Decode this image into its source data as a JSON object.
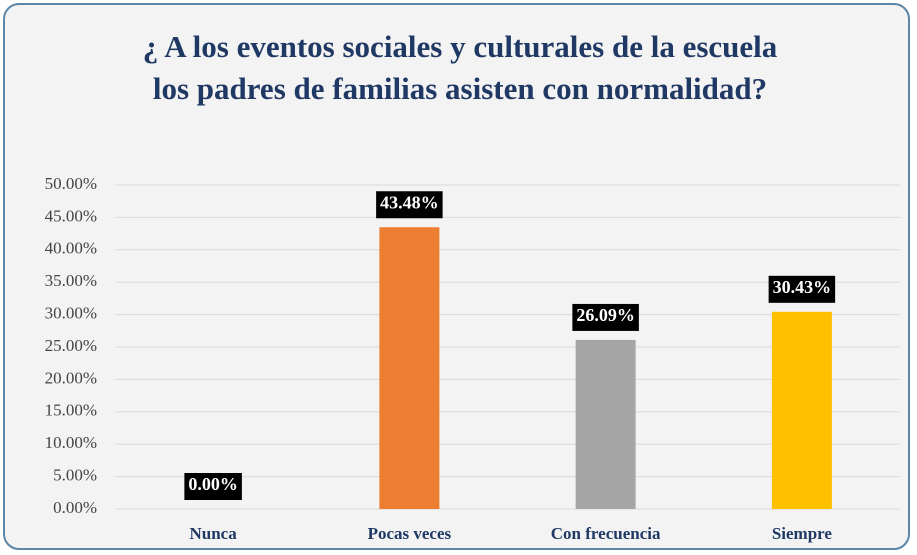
{
  "chart_data": {
    "type": "bar",
    "title": "¿ A los eventos sociales y culturales de la escuela los padres de familias asisten con normalidad?",
    "categories": [
      "Nunca",
      "Pocas veces",
      "Con frecuencia",
      "Siempre"
    ],
    "values": [
      0,
      43.48,
      26.09,
      30.43
    ],
    "value_labels": [
      "0.00%",
      "43.48%",
      "26.09%",
      "30.43%"
    ],
    "colors": [
      "#4472c4",
      "#ed7d31",
      "#a5a5a5",
      "#ffc000"
    ],
    "ylim": [
      0,
      50
    ],
    "yticks": [
      {
        "value": 0,
        "label": "0.00%"
      },
      {
        "value": 5,
        "label": "5.00%"
      },
      {
        "value": 10,
        "label": "10.00%"
      },
      {
        "value": 15,
        "label": "15.00%"
      },
      {
        "value": 20,
        "label": "20.00%"
      },
      {
        "value": 25,
        "label": "25.00%"
      },
      {
        "value": 30,
        "label": "30.00%"
      },
      {
        "value": 35,
        "label": "35.00%"
      },
      {
        "value": 40,
        "label": "40.00%"
      },
      {
        "value": 45,
        "label": "45.00%"
      },
      {
        "value": 50,
        "label": "50.00%"
      }
    ],
    "grid": true
  }
}
